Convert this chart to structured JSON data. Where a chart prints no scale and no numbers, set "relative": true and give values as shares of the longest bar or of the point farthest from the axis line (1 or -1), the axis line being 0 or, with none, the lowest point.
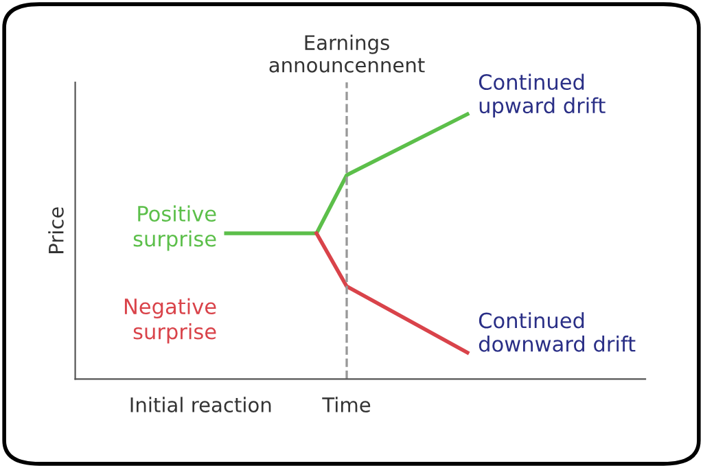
{
  "chart_data": {
    "type": "line",
    "relative": true,
    "xlabel": "Time",
    "ylabel": "Price",
    "marker": "none",
    "line_style": "solid",
    "categories": [
      null,
      null,
      null,
      null,
      null,
      null,
      null,
      null,
      null,
      null,
      null,
      null,
      null,
      null,
      null,
      null,
      null,
      null,
      null
    ],
    "series": [
      {
        "name": "Positive surprise",
        "color": "#5cbf4a",
        "values": [
          null,
          null,
          null,
          null,
          null,
          0.55,
          null,
          null,
          0.55,
          0.77,
          null,
          null,
          null,
          1.0,
          null,
          null,
          null,
          null,
          null
        ]
      },
      {
        "name": "Negative surprise",
        "color": "#d9434a",
        "values": [
          null,
          null,
          null,
          null,
          null,
          null,
          null,
          null,
          0.55,
          0.35,
          null,
          null,
          null,
          0.1,
          null,
          null,
          null,
          null,
          null
        ]
      }
    ],
    "annotations": [
      "Continued upward drift",
      "Continued downward drift",
      "Initial reaction",
      "Earnings announcennent"
    ]
  }
}
